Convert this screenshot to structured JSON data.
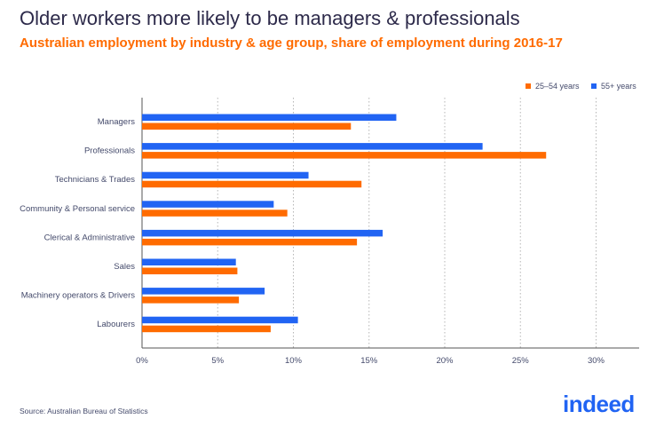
{
  "title": "Older workers more likely to be managers & professionals",
  "subtitle": "Australian employment by industry & age group, share of employment during 2016-17",
  "source": "Source: Australian Bureau of Statistics",
  "logo_text": "indeed",
  "colors": {
    "orange": "#ff6b00",
    "blue": "#2164f3",
    "text": "#444a6b",
    "grid": "#b5b5b5"
  },
  "chart_data": {
    "type": "bar",
    "orientation": "horizontal",
    "title": "Older workers more likely to be managers & professionals",
    "subtitle": "Australian employment by industry & age group, share of employment during 2016-17",
    "categories": [
      "Managers",
      "Professionals",
      "Technicians & Trades",
      "Community & Personal service",
      "Clerical & Administrative",
      "Sales",
      "Machinery operators & Drivers",
      "Labourers"
    ],
    "series": [
      {
        "name": "55+ years",
        "color": "#2164f3",
        "values": [
          16.8,
          22.5,
          11.0,
          8.7,
          15.9,
          6.2,
          8.1,
          10.3
        ]
      },
      {
        "name": "25–54 years",
        "color": "#ff6b00",
        "values": [
          13.8,
          26.7,
          14.5,
          9.6,
          14.2,
          6.3,
          6.4,
          8.5
        ]
      }
    ],
    "legend": [
      "25–54 years",
      "55+ years"
    ],
    "legend_position": "top-right",
    "x_ticks": [
      "0%",
      "5%",
      "10%",
      "15%",
      "20%",
      "25%",
      "30%"
    ],
    "xlim": [
      0,
      33
    ],
    "grid": "vertical-dotted"
  }
}
